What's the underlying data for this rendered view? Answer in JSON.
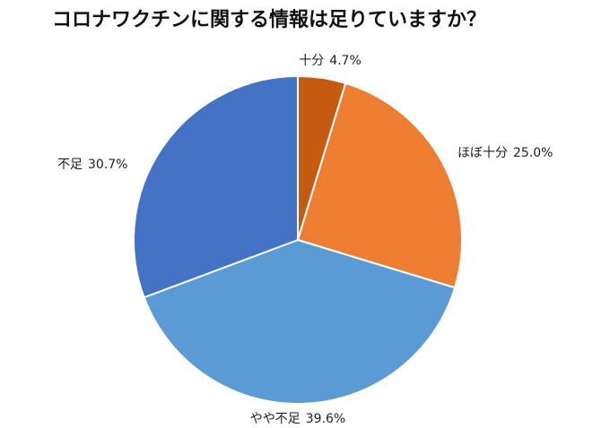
{
  "chart_data": {
    "type": "pie",
    "title": "コロナワクチンに関する情報は足りていますか？",
    "slices": [
      {
        "label": "十分",
        "value": 4.7,
        "display": "4.7%",
        "color": "#c55a11"
      },
      {
        "label": "ほぼ十分",
        "value": 25.0,
        "display": "25.0%",
        "color": "#ed7d31"
      },
      {
        "label": "やや不足",
        "value": 39.6,
        "display": "39.6%",
        "color": "#5b9bd5"
      },
      {
        "label": "不足",
        "value": 30.7,
        "display": "30.7%",
        "color": "#4472c4"
      }
    ],
    "start_angle": "top",
    "direction": "clockwise",
    "legend": "none"
  }
}
